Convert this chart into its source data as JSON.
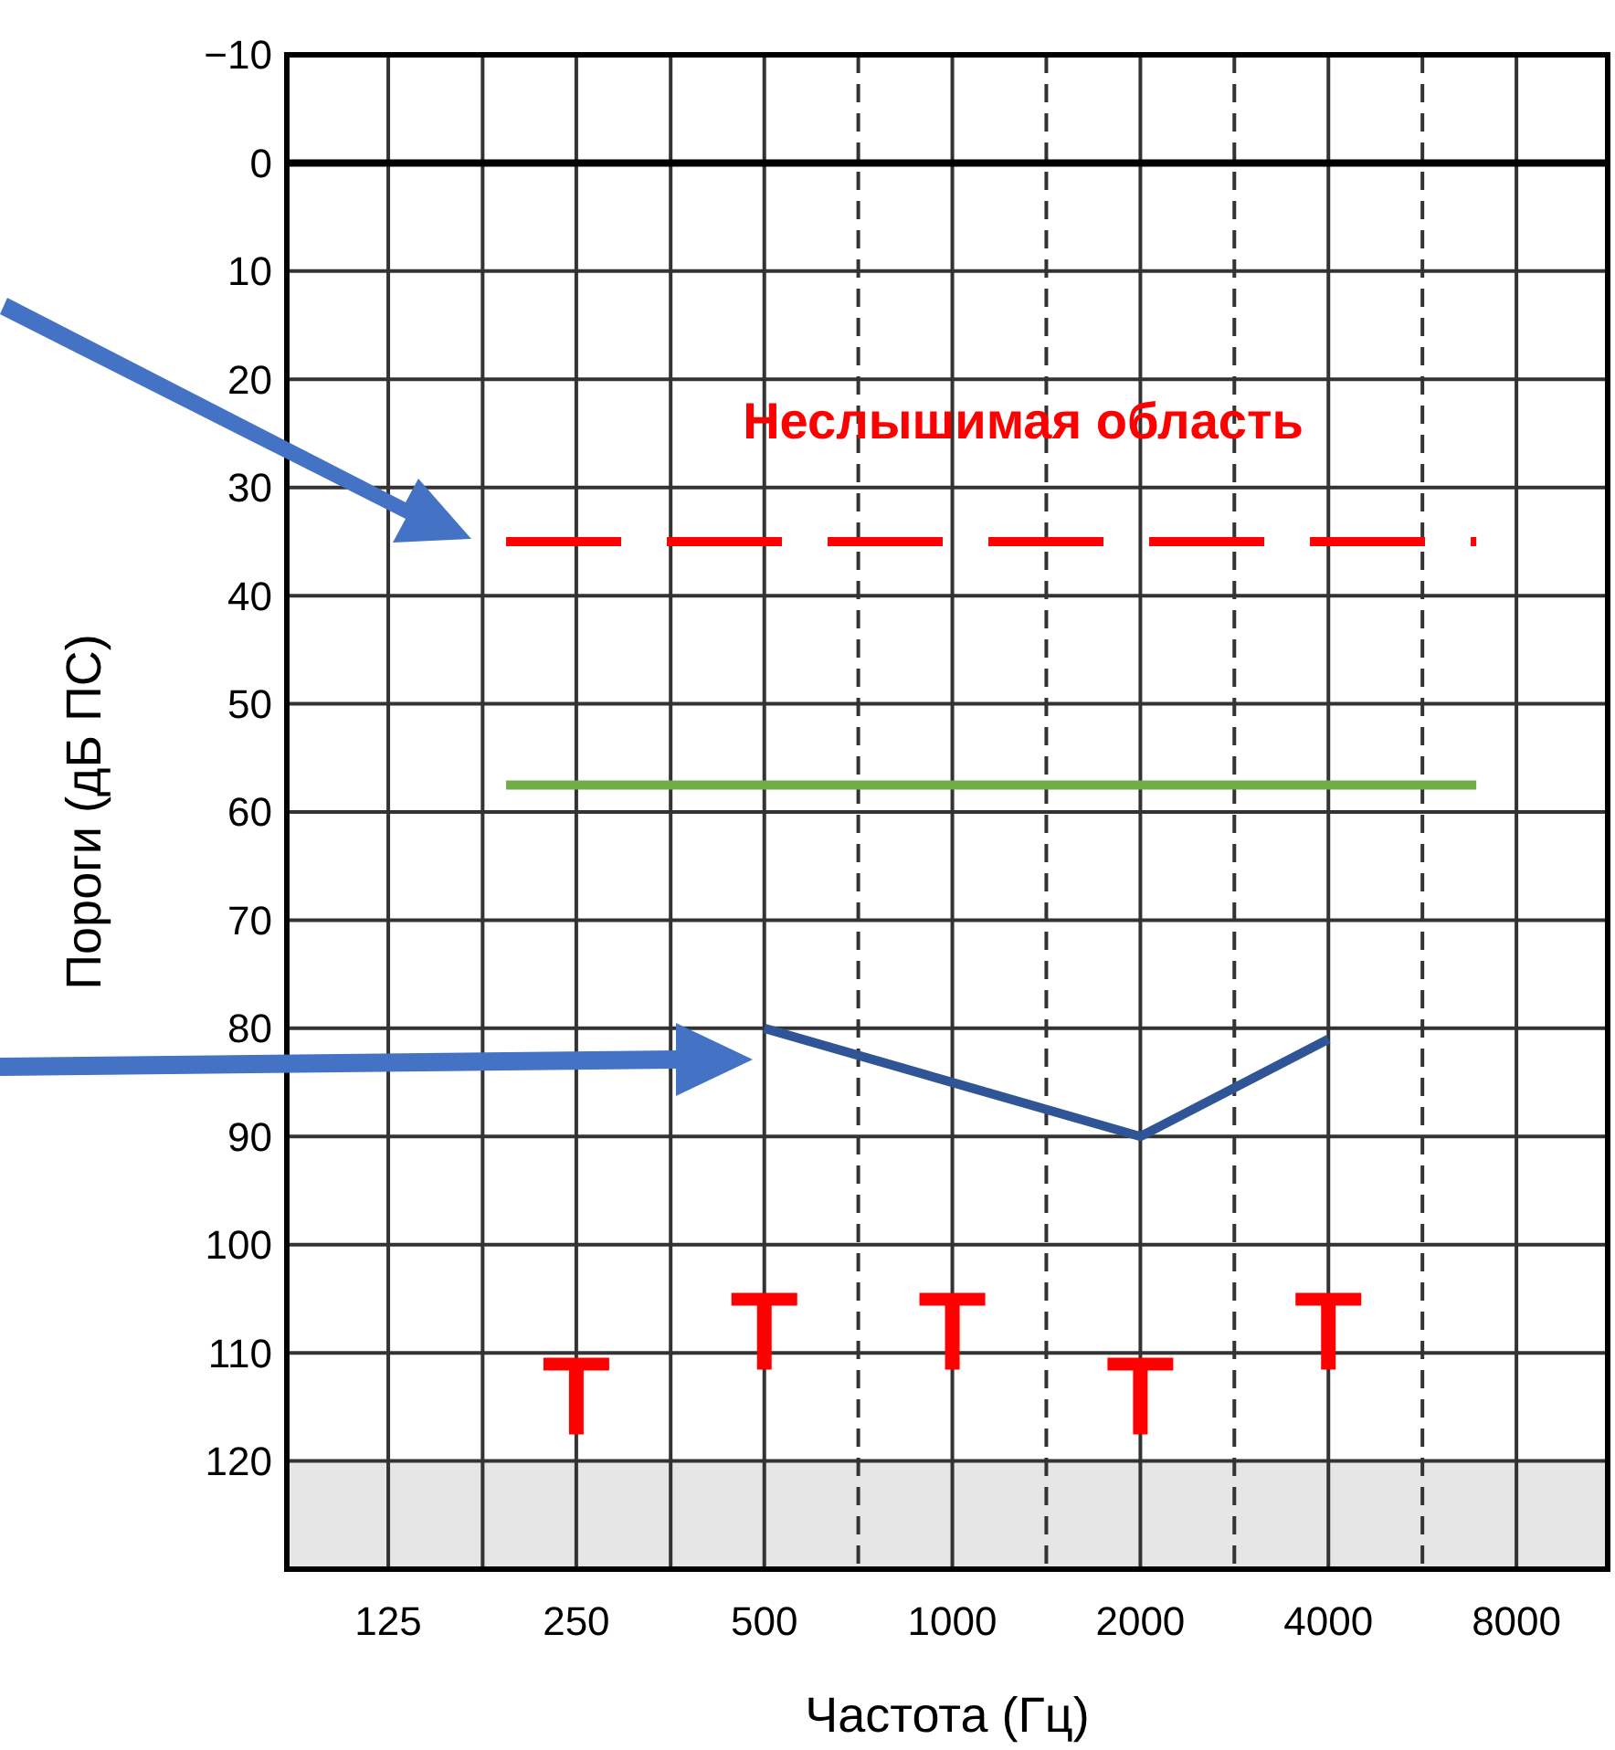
{
  "chart_data": {
    "type": "line",
    "xlabel": "Частота (Гц)",
    "ylabel": "Пороги (дБ ПС)",
    "log": "x",
    "xlim": [
      86,
      11200
    ],
    "xticks": [
      125,
      {
        "value": 177,
        "label": null
      },
      250,
      {
        "value": 354,
        "label": null
      },
      500,
      {
        "value": 707,
        "label": null
      },
      1000,
      {
        "value": 1414,
        "label": null
      },
      2000,
      {
        "value": 2828,
        "label": null
      },
      4000,
      {
        "value": 5657,
        "label": null
      },
      8000
    ],
    "ylim": [
      130,
      -10
    ],
    "yticks": [
      {
        "value": -10,
        "label": "−10"
      },
      0,
      10,
      20,
      30,
      40,
      50,
      60,
      70,
      80,
      90,
      100,
      110,
      120
    ],
    "grid": true,
    "series": [
      {
        "color": "#ff0000",
        "line_style": "dashed",
        "x": [
          193,
          6900
        ],
        "values": [
          35,
          35
        ]
      },
      {
        "color": "#70ad47",
        "line_style": "solid",
        "x": [
          193,
          6900
        ],
        "values": [
          57.5,
          57.5
        ]
      },
      {
        "color": "#2f5597",
        "line_style": "solid",
        "x": [
          500,
          1000,
          2000,
          4000
        ],
        "values": [
          80,
          85,
          90,
          81
        ]
      },
      {
        "type": "scatter",
        "color": "#ff0000",
        "x": [
          250,
          500,
          1000,
          2000,
          4000
        ],
        "values": [
          114,
          108,
          108,
          114,
          108
        ]
      }
    ],
    "ref_lines": [
      {
        "axis": "y",
        "value": 0,
        "label": null,
        "color": "#000000"
      }
    ],
    "bands": [
      {
        "axis": "y",
        "from": 120,
        "to": 130,
        "label": null,
        "color": "#e6e6e6"
      }
    ],
    "annotations": [
      "Неслышимая область"
    ]
  }
}
